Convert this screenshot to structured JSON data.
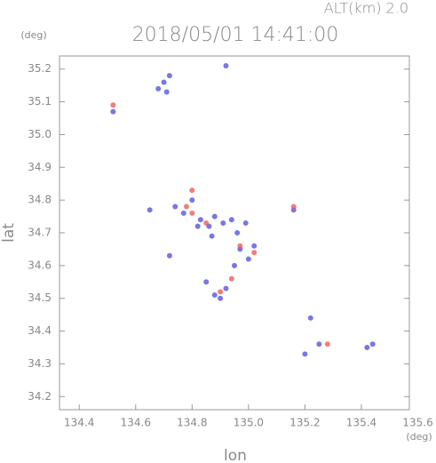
{
  "chart_data": {
    "type": "scatter",
    "title": "2018/05/01 14:41:00",
    "subtitle": "ALT(km) 2.0",
    "x_label": "lon",
    "y_label": "lat",
    "x_unit": "(deg)",
    "y_unit": "(deg)",
    "xlim": [
      134.33,
      135.57
    ],
    "ylim": [
      34.16,
      35.24
    ],
    "xticks": [
      134.4,
      134.6,
      134.8,
      {
        "value": 135.0,
        "label": "135.0"
      },
      135.2,
      135.4,
      135.6
    ],
    "yticks": [
      34.2,
      34.3,
      34.4,
      34.5,
      34.6,
      34.7,
      34.8,
      34.9,
      {
        "value": 35.0,
        "label": "35.0"
      },
      35.1,
      35.2
    ],
    "series": [
      {
        "color": "#4a4ae0",
        "x": [
          134.68,
          134.7,
          134.72,
          134.71,
          134.92,
          134.52,
          134.65,
          134.74,
          134.77,
          134.8,
          134.83,
          134.86,
          134.88,
          134.91,
          134.94,
          134.96,
          134.99,
          134.82,
          134.87,
          134.97,
          134.95,
          135.0,
          135.02,
          134.85,
          134.88,
          134.9,
          134.92,
          135.16,
          135.2,
          135.25,
          135.22,
          135.42,
          135.44,
          134.72
        ],
        "y": [
          35.14,
          35.16,
          35.18,
          35.13,
          35.21,
          35.07,
          34.77,
          34.78,
          34.76,
          34.8,
          34.74,
          34.72,
          34.75,
          34.73,
          34.74,
          34.7,
          34.73,
          34.72,
          34.69,
          34.65,
          34.6,
          34.62,
          34.66,
          34.55,
          34.51,
          34.5,
          34.53,
          34.77,
          34.33,
          34.36,
          34.44,
          34.35,
          34.36,
          34.63
        ]
      },
      {
        "color": "#f05050",
        "x": [
          134.52,
          134.78,
          134.8,
          134.9,
          134.94,
          134.97,
          135.28,
          135.16,
          134.8,
          134.85,
          135.02
        ],
        "y": [
          35.09,
          34.78,
          34.76,
          34.52,
          34.56,
          34.66,
          34.36,
          34.78,
          34.83,
          34.73,
          34.64
        ]
      }
    ]
  }
}
